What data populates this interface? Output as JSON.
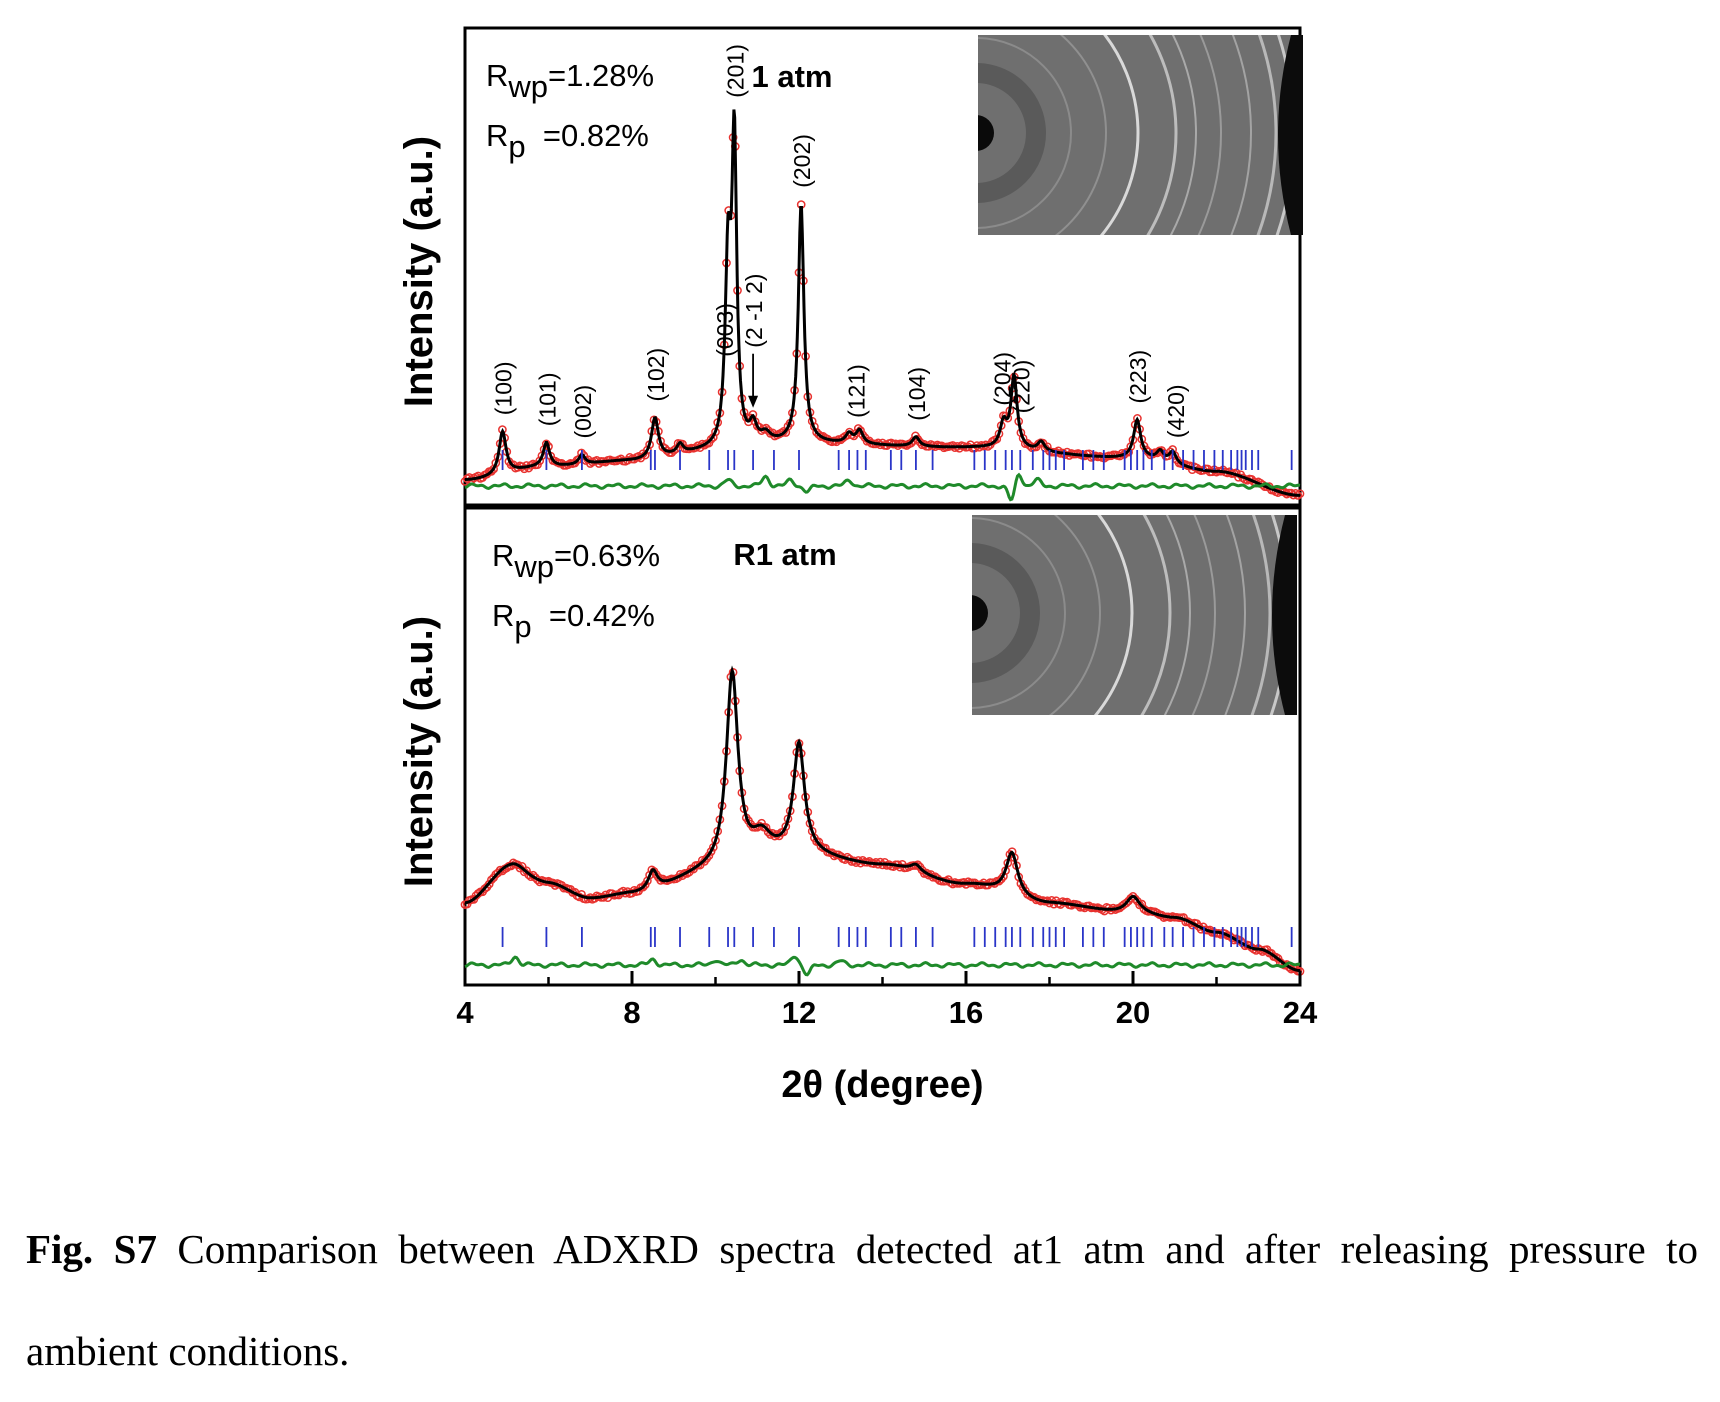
{
  "chart_data": {
    "type": "line",
    "shared_x_axis": {
      "label": "2θ (degree)",
      "range": [
        4,
        24
      ],
      "ticks": [
        4,
        8,
        12,
        16,
        20,
        24
      ]
    },
    "panels": [
      {
        "title": "1 atm",
        "ylabel": "Intensity (a.u.)",
        "stats": [
          {
            "sym": "R",
            "sub": "wp",
            "value": "=1.28%"
          },
          {
            "sym": "R",
            "sub": "p",
            "value": "=0.82%"
          }
        ],
        "series": [
          {
            "role": "observed",
            "color": "#e8322f",
            "marker": "open-circle"
          },
          {
            "role": "calculated",
            "color": "#000000",
            "style": "line"
          },
          {
            "role": "bragg-positions",
            "color": "#2a35c8",
            "style": "ticks"
          },
          {
            "role": "difference",
            "color": "#1f8a2a",
            "style": "line"
          }
        ],
        "background": [
          [
            4.0,
            0.052
          ],
          [
            6,
            0.08
          ],
          [
            8,
            0.092
          ],
          [
            10,
            0.112
          ],
          [
            12,
            0.128
          ],
          [
            16,
            0.12
          ],
          [
            20,
            0.098
          ],
          [
            22,
            0.07
          ],
          [
            24,
            0.02
          ]
        ],
        "peaks": [
          {
            "x": 4.9,
            "h": 0.09,
            "w": 0.1
          },
          {
            "x": 5.95,
            "h": 0.05,
            "w": 0.09
          },
          {
            "x": 6.8,
            "h": 0.02,
            "w": 0.09
          },
          {
            "x": 8.55,
            "h": 0.085,
            "w": 0.1
          },
          {
            "x": 9.15,
            "h": 0.02,
            "w": 0.09
          },
          {
            "x": 10.3,
            "h": 0.38,
            "w": 0.08
          },
          {
            "x": 10.45,
            "h": 0.63,
            "w": 0.07
          },
          {
            "x": 10.9,
            "h": 0.04,
            "w": 0.1
          },
          {
            "x": 11.2,
            "h": 0.02,
            "w": 0.15
          },
          {
            "x": 12.05,
            "h": 0.5,
            "w": 0.08
          },
          {
            "x": 13.2,
            "h": 0.02,
            "w": 0.1
          },
          {
            "x": 13.45,
            "h": 0.028,
            "w": 0.1
          },
          {
            "x": 14.8,
            "h": 0.02,
            "w": 0.1
          },
          {
            "x": 16.9,
            "h": 0.05,
            "w": 0.1
          },
          {
            "x": 17.15,
            "h": 0.15,
            "w": 0.09
          },
          {
            "x": 17.8,
            "h": 0.02,
            "w": 0.1
          },
          {
            "x": 20.1,
            "h": 0.08,
            "w": 0.1
          },
          {
            "x": 20.65,
            "h": 0.02,
            "w": 0.1
          },
          {
            "x": 20.95,
            "h": 0.025,
            "w": 0.1
          }
        ],
        "peak_labels": [
          {
            "x": 4.9,
            "text": "(100)"
          },
          {
            "x": 5.95,
            "text": "(101)"
          },
          {
            "x": 6.8,
            "text": "(002)"
          },
          {
            "x": 8.55,
            "text": "(102)"
          },
          {
            "x": 10.2,
            "text": "(003)"
          },
          {
            "x": 10.45,
            "text": "(201)"
          },
          {
            "x": 10.9,
            "text": "(2 -1 2)"
          },
          {
            "x": 12.05,
            "text": "(202)"
          },
          {
            "x": 13.35,
            "text": "(121)"
          },
          {
            "x": 14.8,
            "text": "(104)"
          },
          {
            "x": 16.85,
            "text": "(204)"
          },
          {
            "x": 17.3,
            "text": "(220)"
          },
          {
            "x": 20.1,
            "text": "(223)"
          },
          {
            "x": 21.0,
            "text": "(420)"
          }
        ],
        "diff_features": [
          [
            10.3,
            0.012
          ],
          [
            11.2,
            0.02
          ],
          [
            11.8,
            0.012
          ],
          [
            12.2,
            -0.012
          ],
          [
            13.2,
            0.012
          ],
          [
            17.1,
            -0.035
          ],
          [
            17.25,
            0.03
          ],
          [
            17.7,
            0.012
          ]
        ],
        "inset": "2D diffraction image"
      },
      {
        "title": "R1 atm",
        "ylabel": "Intensity (a.u.)",
        "stats": [
          {
            "sym": "R",
            "sub": "wp",
            "value": "=0.63%"
          },
          {
            "sym": "R",
            "sub": "p",
            "value": "=0.42%"
          }
        ],
        "series": [
          {
            "role": "observed",
            "color": "#e8322f",
            "marker": "open-circle"
          },
          {
            "role": "calculated",
            "color": "#000000",
            "style": "line"
          },
          {
            "role": "bragg-positions",
            "color": "#2a35c8",
            "style": "ticks"
          },
          {
            "role": "difference",
            "color": "#1f8a2a",
            "style": "line"
          }
        ],
        "background": [
          [
            4.0,
            0.17
          ],
          [
            5,
            0.23
          ],
          [
            6,
            0.21
          ],
          [
            7,
            0.18
          ],
          [
            8,
            0.19
          ],
          [
            10,
            0.235
          ],
          [
            12,
            0.27
          ],
          [
            14,
            0.25
          ],
          [
            16,
            0.21
          ],
          [
            18,
            0.17
          ],
          [
            20,
            0.15
          ],
          [
            21,
            0.14
          ],
          [
            22,
            0.11
          ],
          [
            23,
            0.075
          ],
          [
            24,
            0.03
          ]
        ],
        "peaks": [
          {
            "x": 5.2,
            "h": 0.025,
            "w": 0.35
          },
          {
            "x": 8.5,
            "h": 0.04,
            "w": 0.13
          },
          {
            "x": 10.4,
            "h": 0.41,
            "w": 0.17
          },
          {
            "x": 11.1,
            "h": 0.05,
            "w": 0.3
          },
          {
            "x": 12.0,
            "h": 0.23,
            "w": 0.16
          },
          {
            "x": 14.8,
            "h": 0.015,
            "w": 0.15
          },
          {
            "x": 17.1,
            "h": 0.09,
            "w": 0.17
          },
          {
            "x": 20.0,
            "h": 0.035,
            "w": 0.2
          }
        ],
        "diff_features": [
          [
            5.2,
            0.018
          ],
          [
            8.5,
            0.012
          ],
          [
            10.0,
            0.012
          ],
          [
            10.6,
            0.012
          ],
          [
            11.9,
            0.02
          ],
          [
            12.2,
            -0.02
          ],
          [
            13.0,
            0.008
          ]
        ],
        "inset": "2D diffraction image"
      }
    ],
    "reflection_positions": [
      4.9,
      5.95,
      6.8,
      8.45,
      8.55,
      9.15,
      9.85,
      10.3,
      10.45,
      10.9,
      11.4,
      12.0,
      12.95,
      13.2,
      13.4,
      13.6,
      14.2,
      14.45,
      14.8,
      15.2,
      16.2,
      16.45,
      16.7,
      16.95,
      17.1,
      17.3,
      17.6,
      17.85,
      18.0,
      18.15,
      18.35,
      18.8,
      19.05,
      19.3,
      19.8,
      19.95,
      20.1,
      20.25,
      20.45,
      20.75,
      20.95,
      21.2,
      21.45,
      21.7,
      21.95,
      22.15,
      22.35,
      22.5,
      22.6,
      22.7,
      22.85,
      23.0,
      23.8
    ]
  },
  "caption": {
    "label": "Fig. S7",
    "text": " Comparison between ADXRD spectra detected at1 atm and after releasing pressure to ambient conditions."
  }
}
